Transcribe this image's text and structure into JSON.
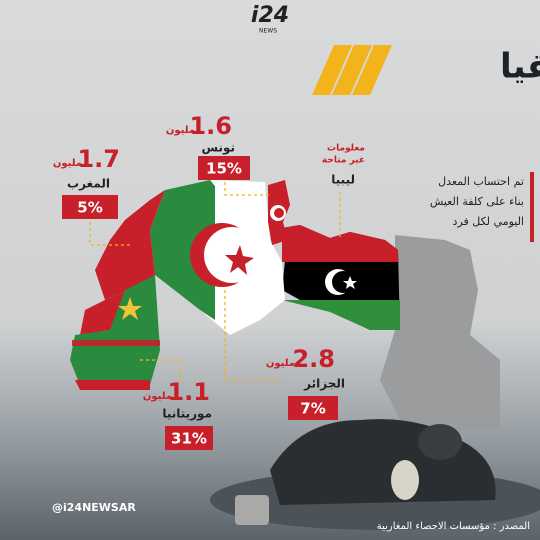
{
  "header": {
    "logo": "i24",
    "logo_sub": "NEWS",
    "title": "نسبة الفقراء في شمال أفريقيا"
  },
  "countries": [
    {
      "name": "تونس",
      "count": "1.6",
      "unit": "مليون",
      "rate": "15%"
    },
    {
      "name": "المغرب",
      "count": "1.7",
      "unit": "مليون",
      "rate": "5%"
    },
    {
      "name": "الجزائر",
      "count": "2.8",
      "unit": "مليون",
      "rate": "7%"
    },
    {
      "name": "موريتانيا",
      "count": "1.1",
      "unit": "مليون",
      "rate": "31%"
    }
  ],
  "libya": {
    "name": "ليبيا",
    "status_line1": "معلومات",
    "status_line2": "غير متاحة"
  },
  "note": {
    "lines": [
      "تم احتساب المعدل",
      "بناء على كلفة العيش",
      "اليومي لكل فرد"
    ]
  },
  "footer": {
    "handle": "@i24NEWSAR",
    "source": "المصدر : مؤسسات الاحصاء المغاربية"
  }
}
